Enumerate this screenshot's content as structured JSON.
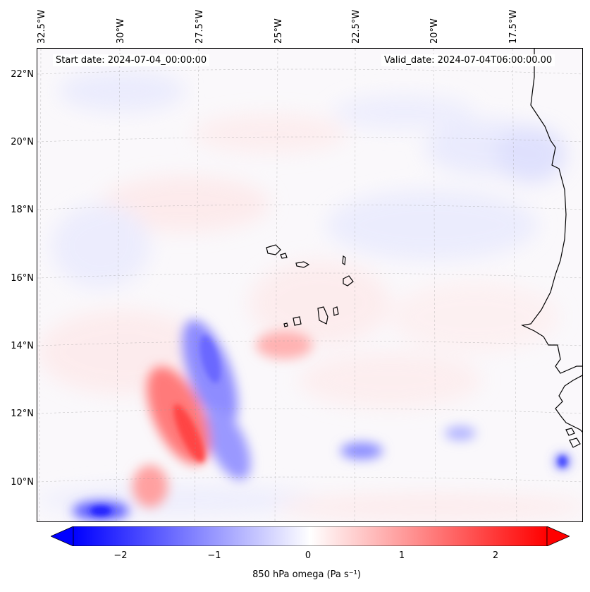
{
  "map": {
    "lon_labels": [
      "32.5°W",
      "30°W",
      "27.5°W",
      "25°W",
      "22.5°W",
      "20°W",
      "17.5°W"
    ],
    "lat_labels": [
      "22°N",
      "20°N",
      "18°N",
      "16°N",
      "14°N",
      "12°N",
      "10°N"
    ],
    "start_date": "Start date: 2024-07-04_00:00:00",
    "valid_date": "Valid_date: 2024-07-04T06:00:00.00",
    "colors": {
      "negative": "#0000ff",
      "zero": "#ffffff",
      "positive": "#ff0000",
      "coast": "#000000"
    }
  },
  "colorbar": {
    "ticks": [
      "−2",
      "−1",
      "0",
      "1",
      "2"
    ],
    "range": [
      -2.6,
      2.6
    ],
    "label": "850 hPa omega (Pa s⁻¹)"
  }
}
